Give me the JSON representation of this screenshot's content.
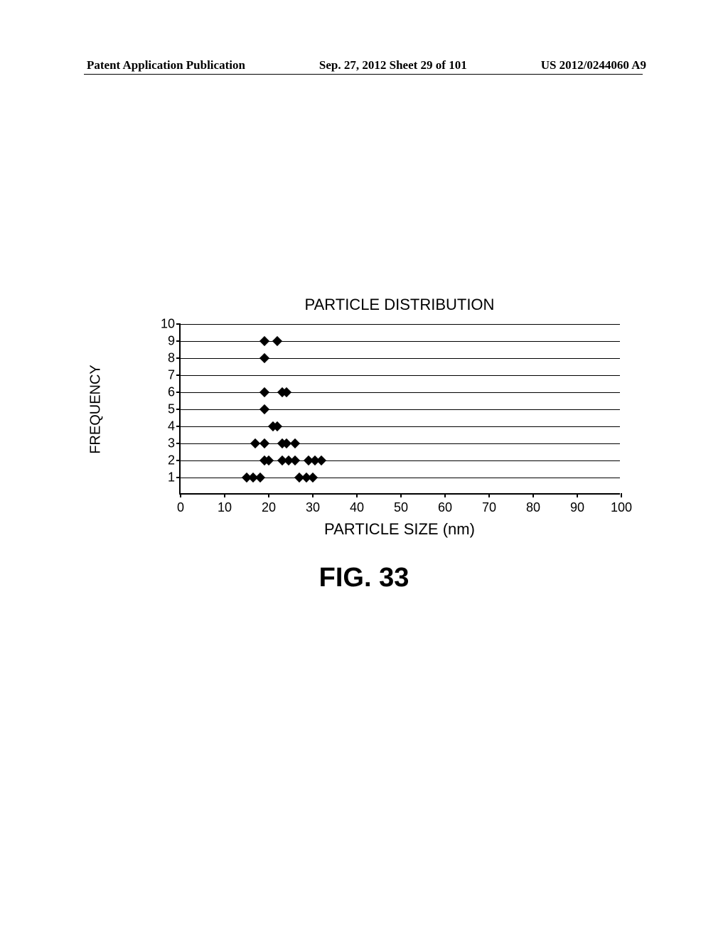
{
  "header": {
    "left": "Patent Application Publication",
    "center": "Sep. 27, 2012  Sheet 29 of 101",
    "right": "US 2012/0244060 A9"
  },
  "chart": {
    "type": "scatter",
    "title": "PARTICLE DISTRIBUTION",
    "ylabel": "FREQUENCY",
    "xlabel": "PARTICLE SIZE (nm)",
    "xlim": [
      0,
      100
    ],
    "ylim": [
      0,
      10
    ],
    "xtick_step": 10,
    "ytick_step": 1,
    "xticks": [
      0,
      10,
      20,
      30,
      40,
      50,
      60,
      70,
      80,
      90,
      100
    ],
    "yticks": [
      1,
      2,
      3,
      4,
      5,
      6,
      7,
      8,
      9,
      10
    ],
    "gridlines_y": [
      1,
      2,
      3,
      4,
      5,
      6,
      7,
      8,
      9,
      10
    ],
    "background_color": "#ffffff",
    "axis_color": "#000000",
    "grid_color": "#000000",
    "marker_color": "#000000",
    "marker_style": "diamond",
    "marker_size": 10,
    "title_fontsize": 22,
    "label_fontsize": 20,
    "tick_fontsize": 18,
    "font_family": "Comic Sans MS",
    "points": [
      {
        "x": 15,
        "y": 1
      },
      {
        "x": 16.5,
        "y": 1
      },
      {
        "x": 18,
        "y": 1
      },
      {
        "x": 27,
        "y": 1
      },
      {
        "x": 28.5,
        "y": 1
      },
      {
        "x": 30,
        "y": 1
      },
      {
        "x": 19,
        "y": 2
      },
      {
        "x": 20,
        "y": 2
      },
      {
        "x": 23,
        "y": 2
      },
      {
        "x": 24.5,
        "y": 2
      },
      {
        "x": 26,
        "y": 2
      },
      {
        "x": 29,
        "y": 2
      },
      {
        "x": 30.5,
        "y": 2
      },
      {
        "x": 32,
        "y": 2
      },
      {
        "x": 17,
        "y": 3
      },
      {
        "x": 19,
        "y": 3
      },
      {
        "x": 23,
        "y": 3
      },
      {
        "x": 24,
        "y": 3
      },
      {
        "x": 26,
        "y": 3
      },
      {
        "x": 21,
        "y": 4
      },
      {
        "x": 22,
        "y": 4
      },
      {
        "x": 19,
        "y": 5
      },
      {
        "x": 19,
        "y": 6
      },
      {
        "x": 23,
        "y": 6
      },
      {
        "x": 24,
        "y": 6
      },
      {
        "x": 19,
        "y": 8
      },
      {
        "x": 19,
        "y": 9
      },
      {
        "x": 22,
        "y": 9
      }
    ]
  },
  "figure_caption": "FIG. 33"
}
